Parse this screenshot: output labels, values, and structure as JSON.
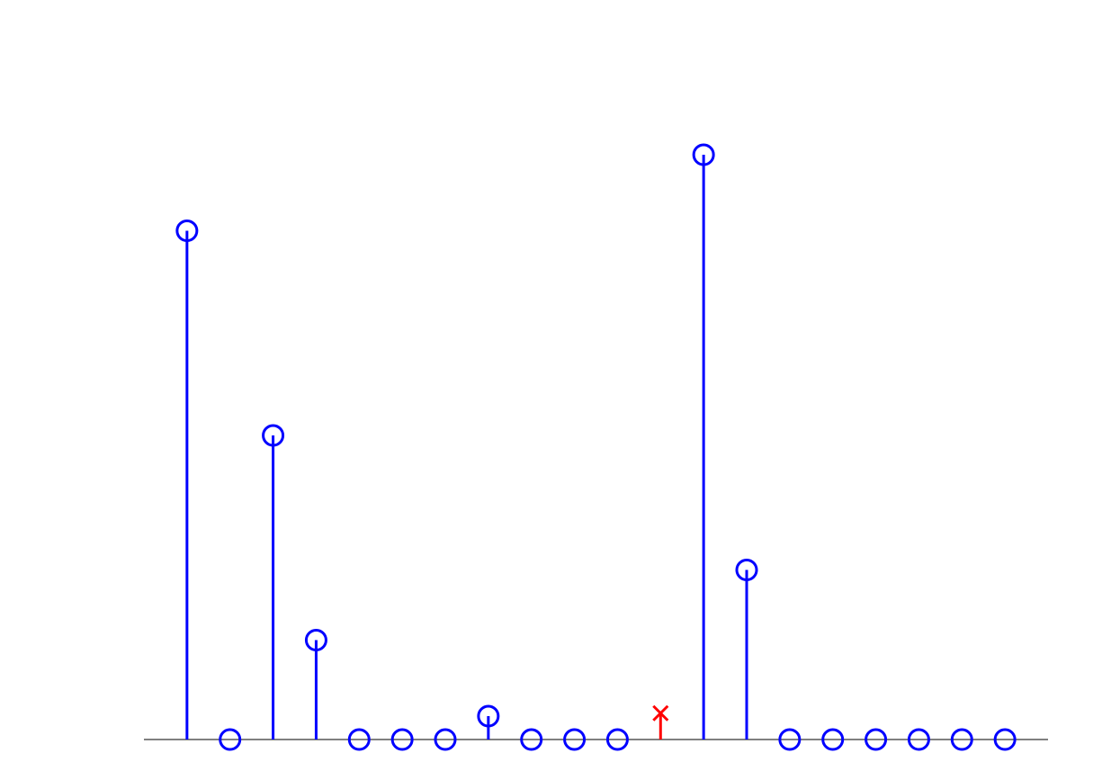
{
  "chart_data": {
    "type": "stem",
    "title": "",
    "xlabel": "",
    "ylabel": "",
    "x": [
      1,
      2,
      3,
      4,
      5,
      6,
      7,
      8,
      9,
      10,
      11,
      12,
      13,
      14,
      15,
      16,
      17,
      18,
      19,
      20
    ],
    "series": [
      {
        "marker": "circle",
        "color": "#0000ff",
        "points": [
          {
            "x": 1,
            "y": 0.87
          },
          {
            "x": 2,
            "y": 0.0
          },
          {
            "x": 3,
            "y": 0.52
          },
          {
            "x": 4,
            "y": 0.17
          },
          {
            "x": 5,
            "y": 0.0
          },
          {
            "x": 6,
            "y": 0.0
          },
          {
            "x": 7,
            "y": 0.0
          },
          {
            "x": 8,
            "y": 0.04
          },
          {
            "x": 9,
            "y": 0.0
          },
          {
            "x": 10,
            "y": 0.0
          },
          {
            "x": 11,
            "y": 0.0
          },
          {
            "x": 13,
            "y": 1.0
          },
          {
            "x": 14,
            "y": 0.29
          },
          {
            "x": 15,
            "y": 0.0
          },
          {
            "x": 16,
            "y": 0.0
          },
          {
            "x": 17,
            "y": 0.0
          },
          {
            "x": 18,
            "y": 0.0
          },
          {
            "x": 19,
            "y": 0.0
          },
          {
            "x": 20,
            "y": 0.0
          }
        ]
      },
      {
        "marker": "x",
        "color": "#ff0000",
        "points": [
          {
            "x": 12,
            "y": 0.045
          }
        ]
      }
    ],
    "xlim": [
      0,
      21
    ],
    "ylim": [
      -0.1,
      1.2
    ],
    "axes_visible": false,
    "grid": false,
    "baseline_color": "#000000"
  }
}
